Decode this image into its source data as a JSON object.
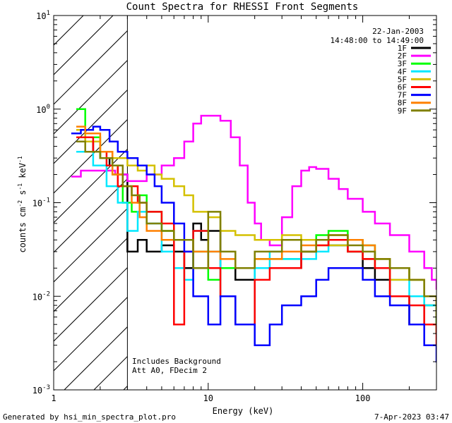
{
  "chart_data": {
    "type": "line",
    "step": true,
    "title": "Count Spectra for RHESSI Front Segments",
    "xlabel": "Energy (keV)",
    "ylabel_parts": [
      "counts cm",
      "-2",
      " s",
      "-1",
      " keV",
      "-1"
    ],
    "x_scale": "log",
    "y_scale": "log",
    "xlim": [
      1,
      300
    ],
    "ylim": [
      0.001,
      10
    ],
    "x_ticks": [
      {
        "value": 1,
        "label": "1"
      },
      {
        "value": 10,
        "label": "10"
      },
      {
        "value": 100,
        "label": "100"
      }
    ],
    "y_ticks": [
      {
        "value": 0.001,
        "base": "10",
        "exp": "-3"
      },
      {
        "value": 0.01,
        "base": "10",
        "exp": "-2"
      },
      {
        "value": 0.1,
        "base": "10",
        "exp": "-1"
      },
      {
        "value": 1,
        "base": "10",
        "exp": "0"
      },
      {
        "value": 10,
        "base": "10",
        "exp": "1"
      }
    ],
    "hatched_region": [
      1,
      3
    ],
    "date": "22-Jan-2003",
    "time_range": "14:48:00 to 14:49:00",
    "annotations": [
      "Includes Background",
      "Att A0, FDecim 2"
    ],
    "footer_left": "Generated by hsi_min_spectra_plot.pro",
    "footer_right": "7-Apr-2023 03:47",
    "series": [
      {
        "name": "1F",
        "color": "#000000",
        "x": [
          1.4,
          1.6,
          1.8,
          2.0,
          2.3,
          2.6,
          3.0,
          3.5,
          4.0,
          5.0,
          6.0,
          7.0,
          8.0,
          9.0,
          10,
          12,
          15,
          20,
          30,
          40,
          50,
          60,
          80,
          100,
          120,
          150,
          200,
          250,
          300
        ],
        "y": [
          0.5,
          0.45,
          0.35,
          0.3,
          0.25,
          0.2,
          0.03,
          0.04,
          0.03,
          0.035,
          0.03,
          0.02,
          0.06,
          0.04,
          0.05,
          0.02,
          0.015,
          0.02,
          0.02,
          0.03,
          0.04,
          0.035,
          0.03,
          0.02,
          0.015,
          0.01,
          0.005,
          0.008,
          0.004
        ]
      },
      {
        "name": "2F",
        "color": "#ff00ff",
        "x": [
          1.3,
          1.5,
          2.0,
          2.5,
          3.0,
          3.5,
          4.0,
          5.0,
          6.0,
          7.0,
          8.0,
          9.0,
          10,
          12,
          14,
          16,
          18,
          20,
          22,
          25,
          30,
          35,
          40,
          45,
          50,
          60,
          70,
          80,
          100,
          120,
          150,
          200,
          250,
          280,
          300
        ],
        "y": [
          0.19,
          0.22,
          0.22,
          0.2,
          0.17,
          0.17,
          0.2,
          0.25,
          0.3,
          0.45,
          0.7,
          0.85,
          0.85,
          0.75,
          0.5,
          0.25,
          0.1,
          0.06,
          0.04,
          0.035,
          0.07,
          0.15,
          0.22,
          0.24,
          0.23,
          0.18,
          0.14,
          0.11,
          0.08,
          0.06,
          0.045,
          0.03,
          0.02,
          0.015,
          0.012
        ]
      },
      {
        "name": "3F",
        "color": "#00ff00",
        "x": [
          1.4,
          1.6,
          2.0,
          2.4,
          2.8,
          3.2,
          3.6,
          4.0,
          5.0,
          6.0,
          8.0,
          10,
          12,
          15,
          20,
          30,
          40,
          50,
          60,
          80,
          100,
          120,
          150,
          200,
          250,
          300
        ],
        "y": [
          1.0,
          0.5,
          0.3,
          0.2,
          0.1,
          0.08,
          0.12,
          0.08,
          0.05,
          0.04,
          0.03,
          0.015,
          0.02,
          0.02,
          0.025,
          0.025,
          0.03,
          0.045,
          0.05,
          0.04,
          0.035,
          0.025,
          0.02,
          0.015,
          0.008,
          0.004
        ]
      },
      {
        "name": "4F",
        "color": "#00e8ff",
        "x": [
          1.4,
          1.8,
          2.2,
          2.6,
          3.0,
          3.5,
          4.0,
          5.0,
          6.0,
          7.0,
          8.0,
          10,
          12,
          15,
          20,
          25,
          30,
          40,
          50,
          60,
          80,
          100,
          120,
          150,
          200,
          250,
          300
        ],
        "y": [
          0.35,
          0.25,
          0.15,
          0.1,
          0.05,
          0.08,
          0.06,
          0.03,
          0.02,
          0.015,
          0.05,
          0.03,
          0.01,
          0.005,
          0.02,
          0.03,
          0.025,
          0.025,
          0.03,
          0.035,
          0.03,
          0.025,
          0.02,
          0.015,
          0.01,
          0.008,
          0.005
        ]
      },
      {
        "name": "5F",
        "color": "#d4c000",
        "x": [
          1.4,
          1.6,
          2.0,
          2.4,
          3.0,
          3.5,
          4.0,
          4.5,
          5.0,
          6.0,
          7.0,
          8.0,
          10,
          12,
          15,
          20,
          30,
          40,
          50,
          60,
          80,
          100,
          120,
          150,
          200,
          250,
          300
        ],
        "y": [
          0.6,
          0.45,
          0.35,
          0.3,
          0.25,
          0.22,
          0.25,
          0.2,
          0.18,
          0.15,
          0.12,
          0.08,
          0.07,
          0.05,
          0.045,
          0.04,
          0.045,
          0.04,
          0.035,
          0.035,
          0.03,
          0.025,
          0.02,
          0.015,
          0.015,
          0.01,
          0.008
        ]
      },
      {
        "name": "6F",
        "color": "#ff0000",
        "x": [
          1.4,
          1.8,
          2.2,
          2.6,
          3.0,
          3.5,
          4.0,
          5.0,
          6.0,
          7.0,
          8.0,
          10,
          12,
          15,
          20,
          25,
          30,
          40,
          50,
          60,
          80,
          100,
          120,
          150,
          200,
          250,
          300
        ],
        "y": [
          0.5,
          0.35,
          0.25,
          0.15,
          0.15,
          0.1,
          0.08,
          0.06,
          0.005,
          0.03,
          0.05,
          0.02,
          0.01,
          0.005,
          0.015,
          0.02,
          0.02,
          0.03,
          0.035,
          0.04,
          0.03,
          0.025,
          0.02,
          0.01,
          0.008,
          0.005,
          0.003
        ]
      },
      {
        "name": "7F",
        "color": "#0000ff",
        "x": [
          1.3,
          1.5,
          1.8,
          2.0,
          2.3,
          2.6,
          3.0,
          3.5,
          4.0,
          4.5,
          5.0,
          6.0,
          7.0,
          8.0,
          10,
          12,
          15,
          20,
          25,
          30,
          40,
          50,
          60,
          80,
          100,
          120,
          150,
          200,
          250,
          300
        ],
        "y": [
          0.55,
          0.6,
          0.65,
          0.6,
          0.45,
          0.35,
          0.3,
          0.25,
          0.2,
          0.15,
          0.1,
          0.06,
          0.03,
          0.01,
          0.005,
          0.01,
          0.005,
          0.003,
          0.005,
          0.008,
          0.01,
          0.015,
          0.02,
          0.02,
          0.015,
          0.01,
          0.008,
          0.005,
          0.003,
          0.002
        ]
      },
      {
        "name": "8F",
        "color": "#ff8000",
        "x": [
          1.4,
          1.6,
          2.0,
          2.4,
          2.8,
          3.2,
          3.6,
          4.0,
          5.0,
          6.0,
          8.0,
          10,
          12,
          15,
          20,
          30,
          40,
          50,
          60,
          80,
          100,
          120,
          150,
          200,
          250,
          300
        ],
        "y": [
          0.65,
          0.55,
          0.35,
          0.2,
          0.15,
          0.1,
          0.07,
          0.05,
          0.04,
          0.04,
          0.03,
          0.03,
          0.025,
          0.02,
          0.025,
          0.03,
          0.035,
          0.04,
          0.045,
          0.04,
          0.035,
          0.025,
          0.02,
          0.015,
          0.01,
          0.006
        ]
      },
      {
        "name": "9F",
        "color": "#808000",
        "x": [
          1.4,
          1.6,
          2.0,
          2.4,
          2.8,
          3.2,
          3.6,
          4.0,
          5.0,
          6.0,
          8.0,
          10,
          12,
          15,
          20,
          30,
          40,
          50,
          60,
          80,
          100,
          120,
          150,
          200,
          250,
          300
        ],
        "y": [
          0.45,
          0.35,
          0.3,
          0.25,
          0.15,
          0.12,
          0.1,
          0.06,
          0.05,
          0.04,
          0.02,
          0.08,
          0.03,
          0.02,
          0.03,
          0.04,
          0.03,
          0.04,
          0.045,
          0.035,
          0.03,
          0.025,
          0.02,
          0.015,
          0.01,
          0.005
        ]
      }
    ]
  }
}
